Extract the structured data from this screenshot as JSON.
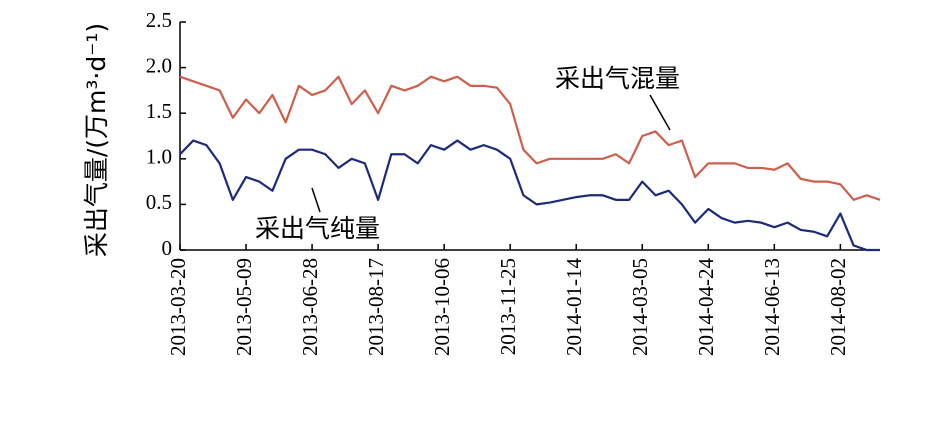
{
  "chart_data": {
    "type": "line",
    "ylabel": "采出气量/(万m³·d⁻¹)",
    "x": [
      "2013-03-20",
      "2013-03-30",
      "2013-04-09",
      "2013-04-19",
      "2013-04-29",
      "2013-05-09",
      "2013-05-19",
      "2013-05-29",
      "2013-06-08",
      "2013-06-18",
      "2013-06-28",
      "2013-07-08",
      "2013-07-18",
      "2013-07-28",
      "2013-08-07",
      "2013-08-17",
      "2013-08-27",
      "2013-09-06",
      "2013-09-16",
      "2013-09-26",
      "2013-10-06",
      "2013-10-16",
      "2013-10-26",
      "2013-11-05",
      "2013-11-15",
      "2013-11-25",
      "2013-12-05",
      "2013-12-15",
      "2013-12-25",
      "2014-01-04",
      "2014-01-14",
      "2014-01-24",
      "2014-02-03",
      "2014-02-13",
      "2014-02-23",
      "2014-03-05",
      "2014-03-15",
      "2014-03-25",
      "2014-04-04",
      "2014-04-14",
      "2014-04-24",
      "2014-05-04",
      "2014-05-14",
      "2014-05-24",
      "2014-06-03",
      "2014-06-13",
      "2014-06-23",
      "2014-07-03",
      "2014-07-13",
      "2014-07-23",
      "2014-08-02",
      "2014-08-12",
      "2014-08-22",
      "2014-09-01"
    ],
    "series": [
      {
        "name": "采出气混量",
        "color": "#cd5f4b",
        "values": [
          1.9,
          1.85,
          1.8,
          1.75,
          1.45,
          1.65,
          1.5,
          1.7,
          1.4,
          1.8,
          1.7,
          1.75,
          1.9,
          1.6,
          1.75,
          1.5,
          1.8,
          1.75,
          1.8,
          1.9,
          1.85,
          1.9,
          1.8,
          1.8,
          1.78,
          1.6,
          1.1,
          0.95,
          1.0,
          1.0,
          1.0,
          1.0,
          1.0,
          1.05,
          0.95,
          1.25,
          1.3,
          1.15,
          1.2,
          0.8,
          0.95,
          0.95,
          0.95,
          0.9,
          0.9,
          0.88,
          0.95,
          0.78,
          0.75,
          0.75,
          0.72,
          0.55,
          0.6,
          0.55
        ]
      },
      {
        "name": "采出气纯量",
        "color": "#1c2a7c",
        "values": [
          1.05,
          1.2,
          1.15,
          0.95,
          0.55,
          0.8,
          0.75,
          0.65,
          1.0,
          1.1,
          1.1,
          1.05,
          0.9,
          1.0,
          0.95,
          0.55,
          1.05,
          1.05,
          0.95,
          1.15,
          1.1,
          1.2,
          1.1,
          1.15,
          1.1,
          1.0,
          0.6,
          0.5,
          0.52,
          0.55,
          0.58,
          0.6,
          0.6,
          0.55,
          0.55,
          0.75,
          0.6,
          0.65,
          0.5,
          0.3,
          0.45,
          0.35,
          0.3,
          0.32,
          0.3,
          0.25,
          0.3,
          0.22,
          0.2,
          0.15,
          0.4,
          0.05,
          0.0,
          0.0
        ]
      }
    ],
    "xlim": [
      "2013-03-20",
      "2014-09-01"
    ],
    "xticks": [
      "2013-03-20",
      "2013-05-09",
      "2013-06-28",
      "2013-08-17",
      "2013-10-06",
      "2013-11-25",
      "2014-01-14",
      "2014-03-05",
      "2014-04-24",
      "2014-06-13",
      "2014-08-02"
    ],
    "ylim": [
      0,
      2.5
    ],
    "yticks": [
      0,
      0.5,
      {
        "value": 1,
        "label": "1.0"
      },
      1.5,
      {
        "value": 2,
        "label": "2.0"
      },
      2.5
    ]
  }
}
